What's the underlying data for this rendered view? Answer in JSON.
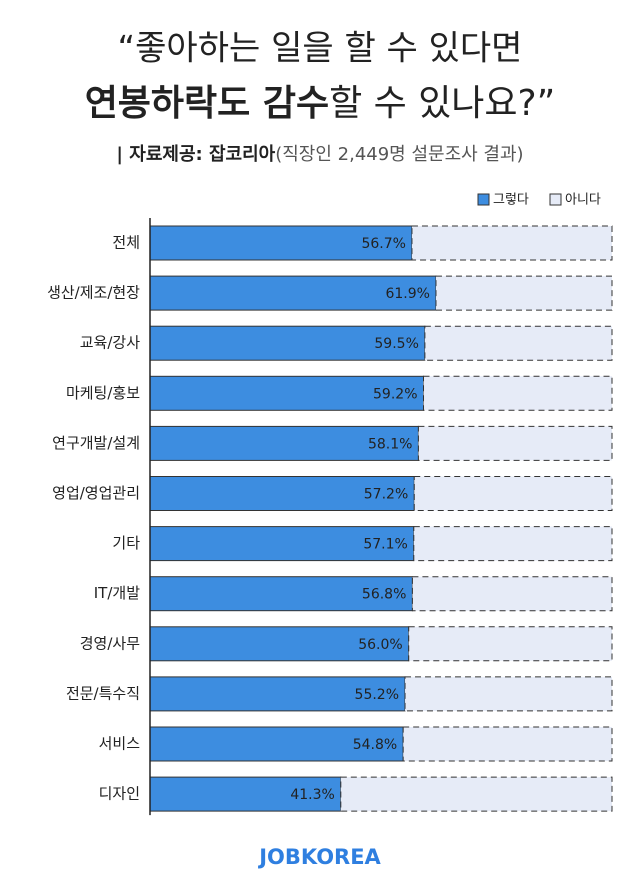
{
  "chart_data": {
    "type": "stacked-hbar",
    "title": {
      "line1": "“좋아하는 일을 할 수 있다면",
      "line2_bold": "연봉하락도 감수",
      "line2_rest": "할 수 있나요?”"
    },
    "subtitle": {
      "bold": "| 자료제공: 잡코리아",
      "rest": "(직장인 2,449명 설문조사 결과)"
    },
    "categories": [
      "전체",
      "생산/제조/현장",
      "교육/강사",
      "마케팅/홍보",
      "연구개발/설계",
      "영업/영업관리",
      "기타",
      "IT/개발",
      "경영/사무",
      "전문/특수직",
      "서비스",
      "디자인"
    ],
    "series": [
      {
        "name": "그렇다",
        "color": "#3d8de0",
        "values": [
          56.7,
          61.9,
          59.5,
          59.2,
          58.1,
          57.2,
          57.1,
          56.8,
          56.0,
          55.2,
          54.8,
          41.3
        ],
        "value_labels": [
          "56.7%",
          "61.9%",
          "59.5%",
          "59.2%",
          "58.1%",
          "57.2%",
          "57.1%",
          "56.8%",
          "56.0%",
          "55.2%",
          "54.8%",
          "41.3%"
        ]
      },
      {
        "name": "아니다",
        "color": "#e6ebf7",
        "values": [
          43.3,
          38.1,
          40.5,
          40.8,
          41.9,
          42.8,
          42.9,
          43.2,
          44.0,
          44.8,
          45.2,
          58.7
        ]
      }
    ],
    "xlim": [
      0,
      100
    ],
    "legend": "top-right",
    "footer": "JOBKOREA"
  }
}
